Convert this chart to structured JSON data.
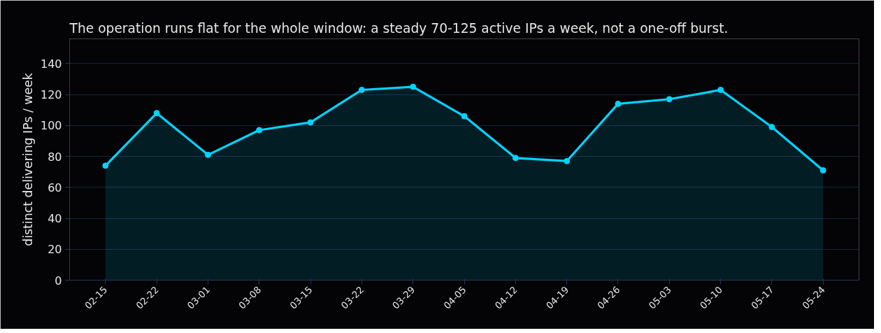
{
  "chart_data": {
    "type": "area",
    "title": "The operation runs flat for the whole window: a steady 70-125 active IPs a week, not a one-off burst.",
    "ylabel": "distinct delivering IPs / week",
    "categories": [
      "02-15",
      "02-22",
      "03-01",
      "03-08",
      "03-15",
      "03-22",
      "03-29",
      "04-05",
      "04-12",
      "04-19",
      "04-26",
      "05-03",
      "05-10",
      "05-17",
      "05-24"
    ],
    "series": [
      {
        "color": "#00d4ff",
        "values": [
          74,
          108,
          81,
          97,
          102,
          123,
          125,
          106,
          79,
          77,
          114,
          117,
          123,
          99,
          71
        ]
      }
    ],
    "ylim": [
      0,
      156
    ],
    "yticks": [
      0,
      20,
      40,
      60,
      80,
      100,
      120,
      140
    ],
    "grid": "y",
    "marker": "circle",
    "line_style": "solid"
  }
}
